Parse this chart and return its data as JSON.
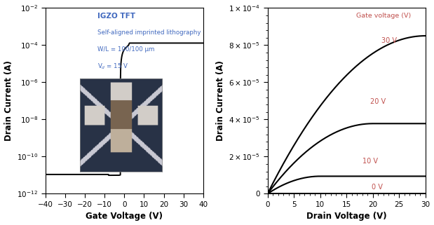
{
  "left_xlabel": "Gate Voltage (V)",
  "left_ylabel": "Drain Current (A)",
  "right_xlabel": "Drain Voltage (V)",
  "right_ylabel": "Drain Current (A)",
  "left_xlim": [
    -40,
    40
  ],
  "left_ylim": [
    1e-12,
    0.01
  ],
  "right_xlim": [
    0,
    30
  ],
  "right_ylim": [
    0,
    0.0001
  ],
  "blue_color": "#4169BF",
  "curve_color": "#000000",
  "label_color": "#C0504D",
  "black": "#000000",
  "background_color": "#ffffff",
  "gate_voltages": [
    0,
    10,
    20,
    30
  ],
  "annotation_line1": "IGZO TFT",
  "annotation_line2": "Self-aligned imprinted lithography",
  "annotation_line3": "W/L = 100/100 μm",
  "annotation_line4": "V$_d$ = 15 V",
  "right_yticks": [
    0,
    2e-05,
    4e-05,
    6e-05,
    8e-05,
    0.0001
  ],
  "right_ytick_labels": [
    "0",
    "2×10⁻⁵",
    "4×10⁻⁵",
    "6×10⁻⁵",
    "8×10⁻⁵",
    "1×10⁻⁴"
  ],
  "left_xticks": [
    -40,
    -30,
    -20,
    -10,
    0,
    10,
    20,
    30,
    40
  ],
  "right_xticks": [
    0,
    5,
    10,
    15,
    20,
    25,
    30
  ]
}
